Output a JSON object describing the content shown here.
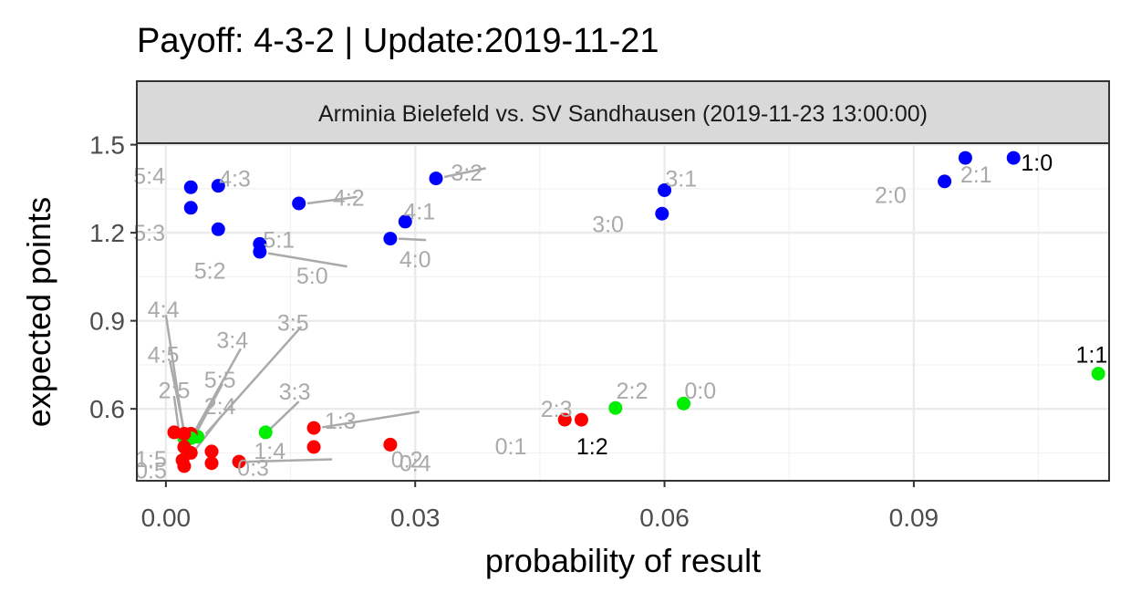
{
  "chart_data": {
    "type": "scatter",
    "title": "Payoff: 4-3-2 | Update:2019-11-21",
    "facet": "Arminia Bielefeld vs. SV Sandhausen (2019-11-23 13:00:00)",
    "xlabel": "probability of result",
    "ylabel": "expected points",
    "xlim": [
      -0.0035,
      0.1135
    ],
    "ylim": [
      0.355,
      1.505
    ],
    "xticks": [
      0.0,
      0.03,
      0.06,
      0.09
    ],
    "xtick_labels": [
      "0.00",
      "0.03",
      "0.06",
      "0.09"
    ],
    "yticks": [
      0.6,
      0.9,
      1.2,
      1.5
    ],
    "ytick_labels": [
      "0.6",
      "0.9",
      "1.2",
      "1.5"
    ],
    "grid": true,
    "legend": "none",
    "colors": {
      "home_win": "#0000ff",
      "draw": "#00ee00",
      "away_win": "#ff0000",
      "label_gray": "#aaaaaa",
      "label_black": "#000000"
    },
    "points": [
      {
        "result": "1:0",
        "x": 0.102,
        "y": 1.455,
        "color": "#0000ff",
        "label_dx": 0.0028,
        "label_dy": -0.015,
        "label_color": "#000000"
      },
      {
        "result": "2:1",
        "x": 0.0962,
        "y": 1.455,
        "color": "#0000ff",
        "label_dx": 0.0013,
        "label_dy": -0.055,
        "label_color": "#aaaaaa"
      },
      {
        "result": "2:0",
        "x": 0.0937,
        "y": 1.375,
        "color": "#0000ff",
        "label_dx": -0.0065,
        "label_dy": -0.045,
        "label_color": "#aaaaaa"
      },
      {
        "result": "1:1",
        "x": 0.1122,
        "y": 0.72,
        "color": "#00ee00",
        "label_dx": -0.0008,
        "label_dy": 0.065,
        "label_color": "#000000"
      },
      {
        "result": "3:1",
        "x": 0.06,
        "y": 1.345,
        "color": "#0000ff",
        "label_dx": 0.002,
        "label_dy": 0.04,
        "label_color": "#aaaaaa"
      },
      {
        "result": "3:0",
        "x": 0.0597,
        "y": 1.265,
        "color": "#0000ff",
        "label_dx": -0.0065,
        "label_dy": -0.035,
        "label_color": "#aaaaaa"
      },
      {
        "result": "3:2",
        "x": 0.0325,
        "y": 1.385,
        "color": "#0000ff",
        "label_dx": 0.0037,
        "label_dy": 0.02,
        "label_color": "#aaaaaa",
        "segment": [
          0.0335,
          1.39,
          0.0385,
          1.42
        ]
      },
      {
        "result": "4:1",
        "x": 0.0288,
        "y": 1.238,
        "color": "#0000ff",
        "label_dx": 0.0017,
        "label_dy": 0.035,
        "label_color": "#aaaaaa"
      },
      {
        "result": "4:0",
        "x": 0.027,
        "y": 1.18,
        "color": "#0000ff",
        "label_dx": 0.003,
        "label_dy": -0.07,
        "label_color": "#aaaaaa",
        "segment": [
          0.028,
          1.18,
          0.0313,
          1.175
        ]
      },
      {
        "result": "4:2",
        "x": 0.016,
        "y": 1.3,
        "color": "#0000ff",
        "label_dx": 0.006,
        "label_dy": 0.02,
        "label_color": "#aaaaaa",
        "segment": [
          0.017,
          1.3,
          0.023,
          1.322
        ]
      },
      {
        "result": "5:1",
        "x": 0.0113,
        "y": 1.162,
        "color": "#0000ff",
        "label_dx": 0.0023,
        "label_dy": 0.015,
        "label_color": "#aaaaaa"
      },
      {
        "result": "5:0",
        "x": 0.0113,
        "y": 1.135,
        "color": "#0000ff",
        "label_dx": 0.0063,
        "label_dy": -0.08,
        "label_color": "#aaaaaa",
        "segment": [
          0.0123,
          1.13,
          0.0218,
          1.085
        ]
      },
      {
        "result": "5:2",
        "x": 0.0063,
        "y": 1.212,
        "color": "#0000ff",
        "label_dx": -0.001,
        "label_dy": -0.14,
        "label_color": "#aaaaaa"
      },
      {
        "result": "4:3",
        "x": 0.0063,
        "y": 1.36,
        "color": "#0000ff",
        "label_dx": 0.002,
        "label_dy": 0.025,
        "label_color": "#aaaaaa"
      },
      {
        "result": "5:4",
        "x": 0.003,
        "y": 1.355,
        "color": "#0000ff",
        "label_dx": -0.005,
        "label_dy": 0.04,
        "label_color": "#aaaaaa"
      },
      {
        "result": "5:3",
        "x": 0.003,
        "y": 1.285,
        "color": "#0000ff",
        "label_dx": -0.005,
        "label_dy": -0.085,
        "label_color": "#aaaaaa"
      },
      {
        "result": "2:2",
        "x": 0.0541,
        "y": 0.603,
        "color": "#00ee00",
        "label_dx": 0.002,
        "label_dy": 0.06,
        "label_color": "#aaaaaa"
      },
      {
        "result": "0:0",
        "x": 0.0623,
        "y": 0.618,
        "color": "#00ee00",
        "label_dx": 0.002,
        "label_dy": 0.045,
        "label_color": "#aaaaaa"
      },
      {
        "result": "1:2",
        "x": 0.05,
        "y": 0.563,
        "color": "#ff0000",
        "label_dx": 0.0013,
        "label_dy": -0.09,
        "label_color": "#000000"
      },
      {
        "result": "0:1",
        "x": 0.048,
        "y": 0.563,
        "color": "#ff0000",
        "label_dx": -0.0065,
        "label_dy": -0.09,
        "label_color": "#aaaaaa"
      },
      {
        "result": "0:2",
        "x": 0.027,
        "y": 0.478,
        "color": "#ff0000",
        "label_dx": 0.002,
        "label_dy": -0.05,
        "label_color": "#aaaaaa"
      },
      {
        "result": "2:3",
        "x": 0.0178,
        "y": 0.535,
        "color": "#ff0000",
        "label_dx": 0.0292,
        "label_dy": 0.065,
        "label_color": "#aaaaaa",
        "segment": [
          0.0188,
          0.537,
          0.0305,
          0.59
        ]
      },
      {
        "result": "1:3",
        "x": 0.0178,
        "y": 0.47,
        "color": "#ff0000",
        "label_dx": 0.0032,
        "label_dy": 0.09,
        "label_color": "#aaaaaa"
      },
      {
        "result": "0:4",
        "x": 0.0088,
        "y": 0.42,
        "color": "#ff0000",
        "label_dx": 0.0212,
        "label_dy": -0.005,
        "label_color": "#aaaaaa",
        "segment": [
          0.0098,
          0.42,
          0.02,
          0.428
        ]
      },
      {
        "result": "3:3",
        "x": 0.012,
        "y": 0.52,
        "color": "#00ee00",
        "label_dx": 0.0035,
        "label_dy": 0.14,
        "label_color": "#aaaaaa",
        "segment": [
          0.0125,
          0.53,
          0.016,
          0.625
        ]
      },
      {
        "result": "1:4",
        "x": 0.0055,
        "y": 0.455,
        "color": "#ff0000",
        "label_dx": 0.007,
        "label_dy": 0.003,
        "label_color": "#aaaaaa"
      },
      {
        "result": "0:3",
        "x": 0.0055,
        "y": 0.415,
        "color": "#ff0000",
        "label_dx": 0.005,
        "label_dy": -0.015,
        "label_color": "#aaaaaa"
      },
      {
        "result": "3:5",
        "x": 0.0038,
        "y": 0.505,
        "color": "#00ee00",
        "label_dx": 0.0115,
        "label_dy": 0.39,
        "label_color": "#aaaaaa",
        "segment": [
          0.0048,
          0.515,
          0.0163,
          0.88
        ]
      },
      {
        "result": "3:4",
        "x": 0.003,
        "y": 0.515,
        "color": "#ff0000",
        "label_dx": 0.005,
        "label_dy": 0.32,
        "label_color": "#aaaaaa",
        "segment": [
          0.0035,
          0.525,
          0.009,
          0.805
        ]
      },
      {
        "result": "5:5",
        "x": 0.003,
        "y": 0.5,
        "color": "#00ee00",
        "label_dx": 0.0035,
        "label_dy": 0.2,
        "label_color": "#aaaaaa",
        "segment": [
          0.0035,
          0.51,
          0.0068,
          0.685
        ]
      },
      {
        "result": "2:4",
        "x": 0.003,
        "y": 0.45,
        "color": "#ff0000",
        "label_dx": 0.0035,
        "label_dy": 0.16,
        "label_color": "#aaaaaa",
        "segment": [
          0.0035,
          0.46,
          0.0068,
          0.58
        ]
      },
      {
        "result": "4:4",
        "x": 0.0022,
        "y": 0.5,
        "color": "#00ee00",
        "label_dx": -0.0025,
        "label_dy": 0.44,
        "label_color": "#aaaaaa",
        "segment": [
          0.0022,
          0.51,
          0.0,
          0.92
        ]
      },
      {
        "result": "4:5",
        "x": 0.0022,
        "y": 0.515,
        "color": "#ff0000",
        "label_dx": -0.0025,
        "label_dy": 0.27,
        "label_color": "#aaaaaa",
        "segment": [
          0.0022,
          0.525,
          0.0005,
          0.76
        ]
      },
      {
        "result": "2:5",
        "x": 0.002,
        "y": 0.425,
        "color": "#ff0000",
        "label_dx": -0.001,
        "label_dy": 0.24,
        "label_color": "#aaaaaa",
        "segment": [
          0.002,
          0.435,
          0.001,
          0.64
        ]
      },
      {
        "result": "1:5",
        "x": 0.0022,
        "y": 0.47,
        "color": "#ff0000",
        "label_dx": -0.004,
        "label_dy": -0.04,
        "label_color": "#aaaaaa"
      },
      {
        "result": "0:5",
        "x": 0.0022,
        "y": 0.405,
        "color": "#ff0000",
        "label_dx": -0.004,
        "label_dy": -0.015,
        "label_color": "#aaaaaa"
      },
      {
        "result": "1:1b",
        "x": 0.001,
        "y": 0.52,
        "color": "#ff0000",
        "label_color": "#aaaaaa"
      }
    ]
  }
}
